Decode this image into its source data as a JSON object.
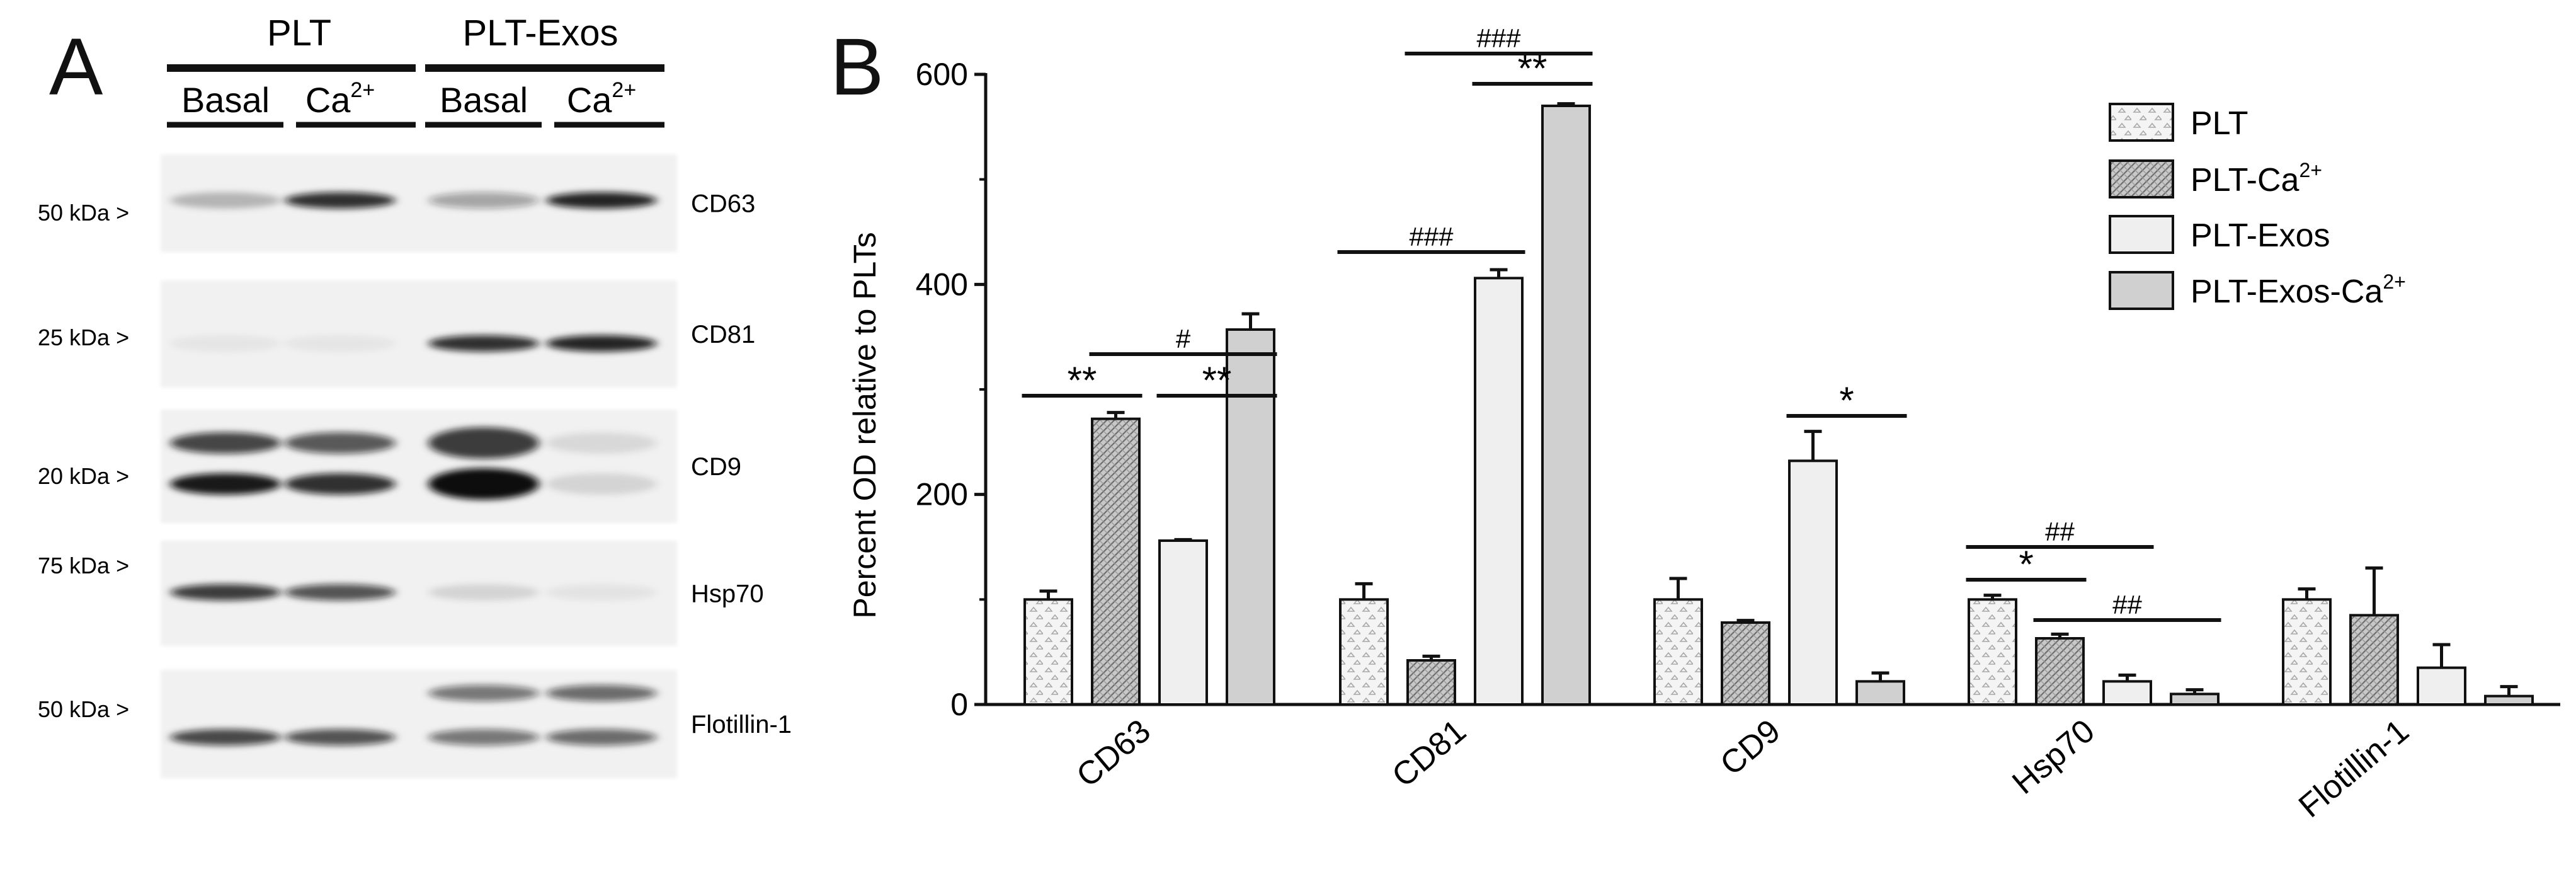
{
  "panel_a": {
    "panel_label": "A",
    "group_labels": [
      "PLT",
      "PLT-Exos"
    ],
    "lane_labels": [
      "Basal",
      "Ca",
      "Basal",
      "Ca"
    ],
    "ca_superscript": "2+",
    "blots": [
      {
        "marker": "CD63",
        "mw": "50 kDa >",
        "intensity": [
          0.25,
          0.85,
          0.35,
          0.9
        ],
        "double": false
      },
      {
        "marker": "CD81",
        "mw": "25 kDa >",
        "intensity": [
          0.05,
          0.05,
          0.85,
          0.9
        ],
        "double": false
      },
      {
        "marker": "CD9",
        "mw": "20 kDa >",
        "intensity": [
          0.95,
          0.85,
          1.0,
          0.12
        ],
        "double": true
      },
      {
        "marker": "Hsp70",
        "mw": "75 kDa >",
        "intensity": [
          0.8,
          0.7,
          0.12,
          0.06
        ],
        "double": false
      },
      {
        "marker": "Flotillin-1",
        "mw": "50 kDa >",
        "intensity": [
          0.75,
          0.7,
          0.55,
          0.6
        ],
        "double": true
      }
    ]
  },
  "chart_data": {
    "type": "bar",
    "panel_label": "B",
    "ylabel": "Percent OD relative to PLTs",
    "xlabel": "",
    "ylim": [
      0,
      600
    ],
    "yticks": [
      "0",
      "200",
      "400",
      "600"
    ],
    "categories": [
      "CD63",
      "CD81",
      "CD9",
      "Hsp70",
      "Flotillin-1"
    ],
    "series": [
      {
        "name": "PLT",
        "legend_base": "PLT",
        "legend_sup": "",
        "pattern": "dots",
        "fill": "#f2f2f2",
        "values": [
          100,
          100,
          100,
          100,
          100
        ],
        "errors": [
          8,
          15,
          20,
          4,
          10
        ]
      },
      {
        "name": "PLT-Ca2+",
        "legend_base": "PLT-Ca",
        "legend_sup": "2+",
        "pattern": "hatch",
        "fill": "#bdbdbd",
        "values": [
          272,
          42,
          78,
          63,
          85
        ],
        "errors": [
          6,
          4,
          2,
          4,
          45
        ]
      },
      {
        "name": "PLT-Exos",
        "legend_base": "PLT-Exos",
        "legend_sup": "",
        "pattern": "solid",
        "fill": "#efefef",
        "values": [
          156,
          406,
          232,
          22,
          35
        ],
        "errors": [
          1,
          8,
          28,
          6,
          22
        ]
      },
      {
        "name": "PLT-Exos-Ca2+",
        "legend_base": "PLT-Exos-Ca",
        "legend_sup": "2+",
        "pattern": "solid",
        "fill": "#d0d0d0",
        "values": [
          357,
          570,
          22,
          10,
          8
        ],
        "errors": [
          15,
          2,
          8,
          4,
          9
        ]
      }
    ],
    "significance": [
      {
        "category": 0,
        "from": 0,
        "to": 1,
        "label": "**"
      },
      {
        "category": 0,
        "from": 2,
        "to": 3,
        "label": "**"
      },
      {
        "category": 0,
        "from": 1,
        "to": 3,
        "label": "#"
      },
      {
        "category": 1,
        "from": 2,
        "to": 3,
        "label": "**"
      },
      {
        "category": 1,
        "from": 1,
        "to": 3,
        "label": "###"
      },
      {
        "category": 1,
        "from": 0,
        "to": 2,
        "label": "###"
      },
      {
        "category": 2,
        "from": 2,
        "to": 3,
        "label": "*"
      },
      {
        "category": 3,
        "from": 0,
        "to": 1,
        "label": "*"
      },
      {
        "category": 3,
        "from": 0,
        "to": 2,
        "label": "##"
      },
      {
        "category": 3,
        "from": 1,
        "to": 3,
        "label": "##"
      }
    ],
    "legend_placement": "top-right",
    "grid": false
  }
}
